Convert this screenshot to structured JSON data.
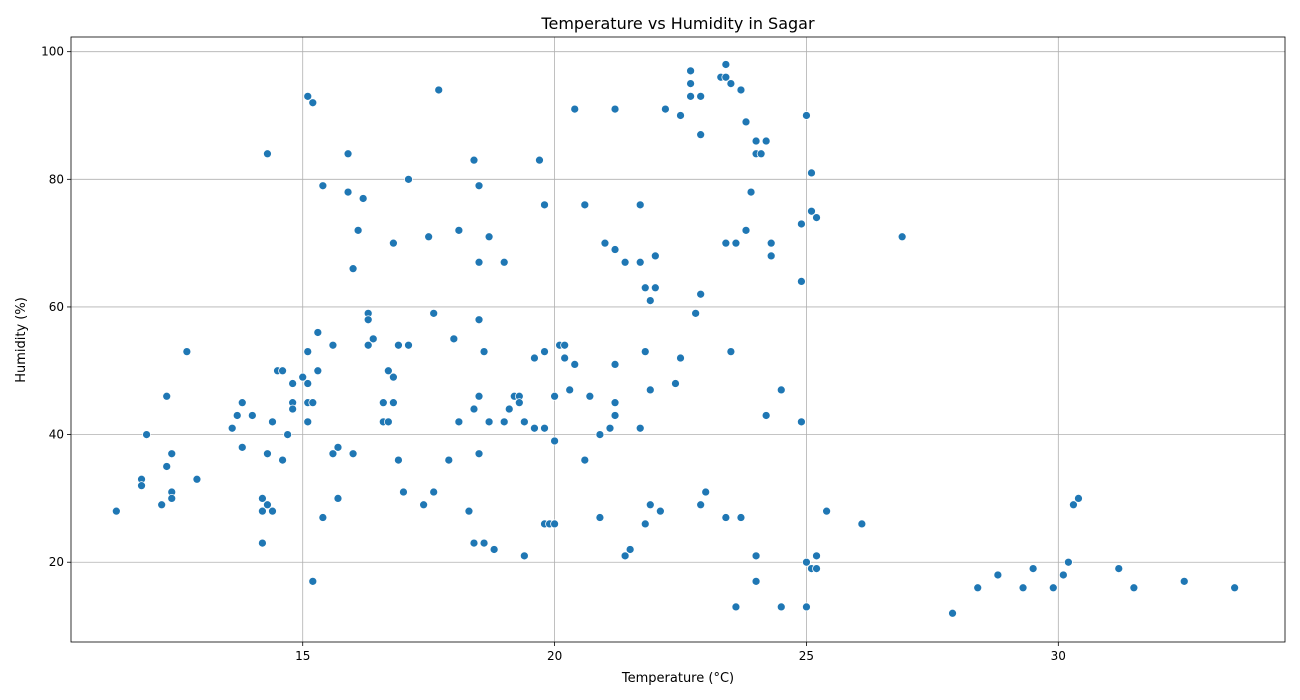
{
  "chart_data": {
    "type": "scatter",
    "title": "Temperature vs Humidity in Sagar",
    "xlabel": "Temperature (°C)",
    "ylabel": "Humidity (%)",
    "xlim": [
      10.4,
      34.5
    ],
    "ylim": [
      7.5,
      102.3
    ],
    "xticks": [
      15,
      20,
      25,
      30
    ],
    "yticks": [
      20,
      40,
      60,
      80,
      100
    ],
    "grid": true,
    "marker_color": "#1f77b4",
    "points": [
      [
        11.3,
        28
      ],
      [
        11.8,
        33
      ],
      [
        11.8,
        32
      ],
      [
        11.9,
        40
      ],
      [
        12.2,
        29
      ],
      [
        12.3,
        46
      ],
      [
        12.3,
        35
      ],
      [
        12.4,
        37
      ],
      [
        12.4,
        31
      ],
      [
        12.4,
        30
      ],
      [
        12.7,
        53
      ],
      [
        12.9,
        33
      ],
      [
        13.6,
        41
      ],
      [
        13.7,
        43
      ],
      [
        13.8,
        45
      ],
      [
        13.8,
        38
      ],
      [
        14.0,
        43
      ],
      [
        14.2,
        30
      ],
      [
        14.2,
        28
      ],
      [
        14.2,
        23
      ],
      [
        14.3,
        84
      ],
      [
        14.3,
        37
      ],
      [
        14.3,
        29
      ],
      [
        14.4,
        42
      ],
      [
        14.4,
        28
      ],
      [
        14.5,
        50
      ],
      [
        14.6,
        50
      ],
      [
        14.6,
        36
      ],
      [
        14.7,
        40
      ],
      [
        14.8,
        48
      ],
      [
        14.8,
        45
      ],
      [
        14.8,
        44
      ],
      [
        15.0,
        49
      ],
      [
        15.1,
        93
      ],
      [
        15.1,
        53
      ],
      [
        15.1,
        48
      ],
      [
        15.1,
        45
      ],
      [
        15.1,
        42
      ],
      [
        15.2,
        92
      ],
      [
        15.2,
        45
      ],
      [
        15.2,
        17
      ],
      [
        15.3,
        56
      ],
      [
        15.3,
        50
      ],
      [
        15.4,
        79
      ],
      [
        15.4,
        27
      ],
      [
        15.6,
        54
      ],
      [
        15.6,
        37
      ],
      [
        15.7,
        38
      ],
      [
        15.7,
        30
      ],
      [
        15.9,
        84
      ],
      [
        15.9,
        78
      ],
      [
        16.0,
        66
      ],
      [
        16.0,
        37
      ],
      [
        16.1,
        72
      ],
      [
        16.2,
        77
      ],
      [
        16.3,
        59
      ],
      [
        16.3,
        58
      ],
      [
        16.3,
        54
      ],
      [
        16.4,
        55
      ],
      [
        16.6,
        45
      ],
      [
        16.6,
        42
      ],
      [
        16.7,
        50
      ],
      [
        16.7,
        42
      ],
      [
        16.8,
        70
      ],
      [
        16.8,
        49
      ],
      [
        16.8,
        45
      ],
      [
        16.9,
        54
      ],
      [
        16.9,
        36
      ],
      [
        17.0,
        31
      ],
      [
        17.1,
        80
      ],
      [
        17.1,
        54
      ],
      [
        17.4,
        29
      ],
      [
        17.5,
        71
      ],
      [
        17.6,
        59
      ],
      [
        17.6,
        31
      ],
      [
        17.7,
        94
      ],
      [
        17.9,
        36
      ],
      [
        18.0,
        55
      ],
      [
        18.1,
        72
      ],
      [
        18.1,
        42
      ],
      [
        18.3,
        28
      ],
      [
        18.4,
        83
      ],
      [
        18.4,
        44
      ],
      [
        18.4,
        23
      ],
      [
        18.5,
        79
      ],
      [
        18.5,
        67
      ],
      [
        18.5,
        58
      ],
      [
        18.5,
        46
      ],
      [
        18.5,
        37
      ],
      [
        18.6,
        53
      ],
      [
        18.6,
        23
      ],
      [
        18.7,
        71
      ],
      [
        18.7,
        42
      ],
      [
        18.8,
        22
      ],
      [
        19.0,
        67
      ],
      [
        19.0,
        42
      ],
      [
        19.1,
        44
      ],
      [
        19.2,
        46
      ],
      [
        19.3,
        46
      ],
      [
        19.3,
        45
      ],
      [
        19.4,
        42
      ],
      [
        19.4,
        21
      ],
      [
        19.6,
        52
      ],
      [
        19.6,
        41
      ],
      [
        19.7,
        83
      ],
      [
        19.8,
        76
      ],
      [
        19.8,
        53
      ],
      [
        19.8,
        41
      ],
      [
        19.8,
        26
      ],
      [
        19.9,
        26
      ],
      [
        20.0,
        46
      ],
      [
        20.0,
        39
      ],
      [
        20.0,
        26
      ],
      [
        20.1,
        54
      ],
      [
        20.2,
        54
      ],
      [
        20.2,
        52
      ],
      [
        20.3,
        47
      ],
      [
        20.4,
        91
      ],
      [
        20.4,
        51
      ],
      [
        20.6,
        76
      ],
      [
        20.6,
        36
      ],
      [
        20.7,
        46
      ],
      [
        20.9,
        40
      ],
      [
        20.9,
        27
      ],
      [
        21.0,
        70
      ],
      [
        21.1,
        41
      ],
      [
        21.2,
        91
      ],
      [
        21.2,
        69
      ],
      [
        21.2,
        51
      ],
      [
        21.2,
        45
      ],
      [
        21.2,
        43
      ],
      [
        21.4,
        67
      ],
      [
        21.4,
        21
      ],
      [
        21.5,
        22
      ],
      [
        21.7,
        76
      ],
      [
        21.7,
        67
      ],
      [
        21.7,
        41
      ],
      [
        21.8,
        63
      ],
      [
        21.8,
        53
      ],
      [
        21.8,
        26
      ],
      [
        21.9,
        61
      ],
      [
        21.9,
        47
      ],
      [
        21.9,
        29
      ],
      [
        22.0,
        68
      ],
      [
        22.0,
        63
      ],
      [
        22.1,
        28
      ],
      [
        22.2,
        91
      ],
      [
        22.4,
        48
      ],
      [
        22.5,
        90
      ],
      [
        22.5,
        52
      ],
      [
        22.7,
        97
      ],
      [
        22.7,
        95
      ],
      [
        22.7,
        93
      ],
      [
        22.8,
        59
      ],
      [
        22.9,
        93
      ],
      [
        22.9,
        87
      ],
      [
        22.9,
        62
      ],
      [
        22.9,
        29
      ],
      [
        23.0,
        31
      ],
      [
        23.3,
        96
      ],
      [
        23.4,
        98
      ],
      [
        23.4,
        96
      ],
      [
        23.4,
        70
      ],
      [
        23.4,
        27
      ],
      [
        23.5,
        95
      ],
      [
        23.5,
        53
      ],
      [
        23.6,
        70
      ],
      [
        23.6,
        13
      ],
      [
        23.7,
        94
      ],
      [
        23.7,
        27
      ],
      [
        23.8,
        89
      ],
      [
        23.8,
        72
      ],
      [
        23.9,
        78
      ],
      [
        24.0,
        86
      ],
      [
        24.0,
        84
      ],
      [
        24.0,
        21
      ],
      [
        24.0,
        17
      ],
      [
        24.1,
        84
      ],
      [
        24.2,
        86
      ],
      [
        24.2,
        43
      ],
      [
        24.3,
        70
      ],
      [
        24.3,
        68
      ],
      [
        24.5,
        47
      ],
      [
        24.5,
        13
      ],
      [
        24.9,
        73
      ],
      [
        24.9,
        64
      ],
      [
        24.9,
        42
      ],
      [
        25.0,
        90
      ],
      [
        25.0,
        20
      ],
      [
        25.0,
        13
      ],
      [
        25.1,
        81
      ],
      [
        25.1,
        75
      ],
      [
        25.1,
        19
      ],
      [
        25.2,
        74
      ],
      [
        25.2,
        21
      ],
      [
        25.2,
        19
      ],
      [
        25.4,
        28
      ],
      [
        26.1,
        26
      ],
      [
        26.9,
        71
      ],
      [
        27.9,
        12
      ],
      [
        28.4,
        16
      ],
      [
        28.8,
        18
      ],
      [
        29.3,
        16
      ],
      [
        29.5,
        19
      ],
      [
        29.9,
        16
      ],
      [
        30.1,
        18
      ],
      [
        30.2,
        20
      ],
      [
        30.3,
        29
      ],
      [
        30.4,
        30
      ],
      [
        31.2,
        19
      ],
      [
        31.5,
        16
      ],
      [
        32.5,
        17
      ],
      [
        33.5,
        16
      ]
    ]
  }
}
